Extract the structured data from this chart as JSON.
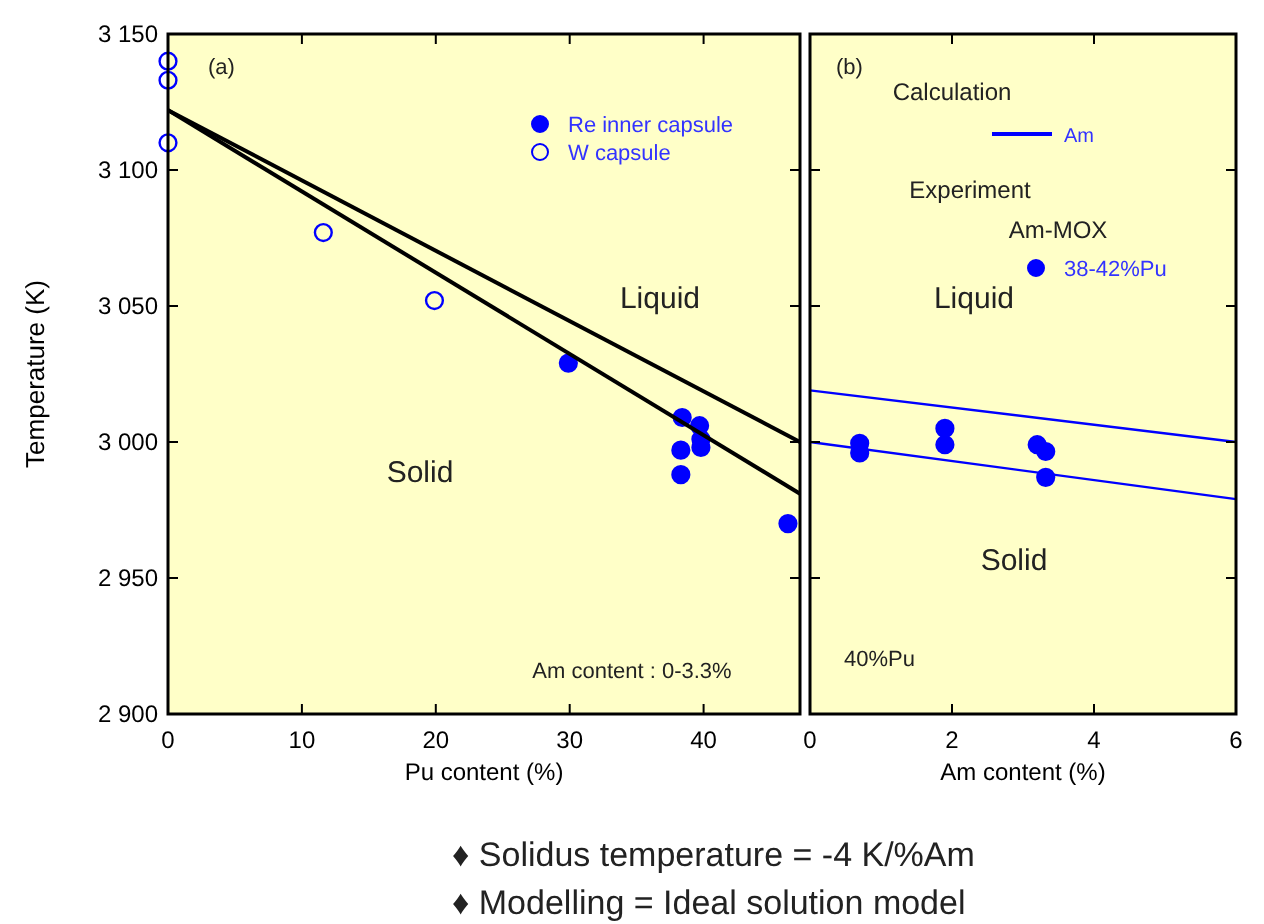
{
  "chart_data": [
    {
      "type": "scatter",
      "xlabel": "Pu content (%)",
      "ylabel": "Temperature (K)",
      "xlim": [
        0,
        47.2
      ],
      "xticks": [
        0,
        10,
        20,
        30,
        40
      ],
      "ylim": [
        2900,
        3150
      ],
      "yticks": [
        {
          "value": 2900,
          "label": "2 900"
        },
        {
          "value": 2950,
          "label": "2 950"
        },
        {
          "value": 3000,
          "label": "3 000"
        },
        {
          "value": 3050,
          "label": "3 050"
        },
        {
          "value": 3100,
          "label": "3 100"
        },
        {
          "value": 3150,
          "label": "3 150"
        }
      ],
      "legend": "top right",
      "grid": false,
      "series": [
        {
          "name": "Re inner capsule",
          "color": "#0000ff",
          "marker": "circle",
          "x": [
            29.9,
            38.4,
            39.7,
            39.8,
            39.8,
            38.3,
            38.3,
            46.3
          ],
          "values": [
            3029,
            3009,
            3006,
            3001,
            2998,
            2997,
            2988,
            2970
          ]
        },
        {
          "name": "W capsule",
          "color": "#0000ff",
          "x": [
            0,
            0,
            0,
            11.6,
            19.9
          ],
          "values": [
            3140,
            3133,
            3110,
            3077,
            3052
          ]
        },
        {
          "type": "line",
          "color": "#000000",
          "x": [
            0,
            47.2
          ],
          "values": [
            3122,
            3000
          ]
        },
        {
          "type": "line",
          "color": "#000000",
          "x": [
            0,
            47.2
          ],
          "values": [
            3122,
            2981
          ]
        }
      ],
      "annotations": [
        "(a)",
        "Liquid",
        "Solid",
        "Am content : 0-3.3%",
        "♦ Solidus temperature = -4 K/%Am",
        "♦ Modelling = Ideal solution model"
      ]
    },
    {
      "type": "scatter",
      "xlabel": "Am content (%)",
      "xlim": [
        0,
        6
      ],
      "xticks": [
        0,
        2,
        4,
        6
      ],
      "ylim": [
        2900,
        3150
      ],
      "yticks": [
        {
          "value": 2900,
          "label": null
        },
        {
          "value": 2950,
          "label": null
        },
        {
          "value": 3000,
          "label": null
        },
        {
          "value": 3050,
          "label": null
        },
        {
          "value": 3100,
          "label": null
        },
        {
          "value": 3150,
          "label": null
        }
      ],
      "tick_labels": "x",
      "legend": "top right",
      "grid": false,
      "series": [
        {
          "type": "line",
          "name": "Am",
          "color": "#0000ff",
          "x": [
            0,
            6
          ],
          "values": [
            3019,
            3000
          ]
        },
        {
          "type": "line",
          "color": "#0000ff",
          "x": [
            0,
            6
          ],
          "values": [
            3000,
            2979
          ]
        },
        {
          "name": "38-42%Pu",
          "color": "#0000ff",
          "marker": "circle",
          "x": [
            0.7,
            0.7,
            1.9,
            1.9,
            3.2,
            3.32,
            3.32
          ],
          "values": [
            2999.5,
            2996,
            3005,
            2999,
            2999,
            2996.5,
            2987
          ]
        }
      ],
      "annotations": [
        "(b)",
        "Calculation",
        "Experiment",
        "Am-MOX",
        "Liquid",
        "Solid",
        "40%Pu"
      ]
    }
  ]
}
